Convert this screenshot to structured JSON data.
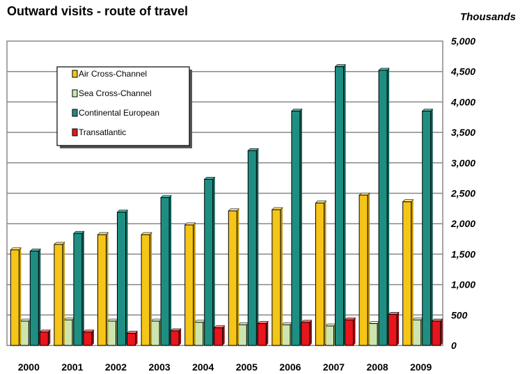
{
  "chart_data": {
    "type": "bar",
    "title": "Outward visits - route of travel",
    "units_label": "Thousands",
    "xlabel": "",
    "ylabel": "",
    "ylim": [
      0,
      5000
    ],
    "yticks": [
      "0",
      "500",
      "1,000",
      "1,500",
      "2,000",
      "2,500",
      "3,000",
      "3,500",
      "4,000",
      "4,500",
      "5,000"
    ],
    "grid": true,
    "legend_position": "top-left",
    "categories": [
      "2000",
      "2001",
      "2002",
      "2003",
      "2004",
      "2005",
      "2006",
      "2007",
      "2008",
      "2009"
    ],
    "series": [
      {
        "name": "Air Cross-Channel",
        "color": "#F5C518",
        "values": [
          1570,
          1660,
          1820,
          1820,
          1980,
          2210,
          2230,
          2340,
          2470,
          2360
        ]
      },
      {
        "name": "Sea Cross-Channel",
        "color": "#CCE5B0",
        "values": [
          400,
          420,
          400,
          400,
          380,
          340,
          340,
          320,
          360,
          420
        ]
      },
      {
        "name": "Continental European",
        "color": "#1F8E82",
        "values": [
          1550,
          1840,
          2190,
          2430,
          2730,
          3200,
          3850,
          4580,
          4520,
          3850
        ]
      },
      {
        "name": "Transatlantic",
        "color": "#E8151C",
        "values": [
          220,
          220,
          200,
          240,
          290,
          360,
          380,
          420,
          510,
          400
        ]
      }
    ]
  },
  "icons": {
    "legend_marker": "square-swatch-icon"
  }
}
